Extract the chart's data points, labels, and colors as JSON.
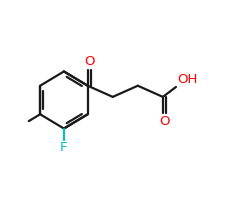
{
  "background_color": "#ffffff",
  "bond_color": "#1a1a1a",
  "oxygen_color": "#ff0000",
  "fluorine_color": "#00c0c0",
  "text_color": "#000000",
  "lw": 1.6,
  "ring_r": 1.15,
  "xlim": [
    0,
    10
  ],
  "ylim": [
    0,
    8
  ]
}
